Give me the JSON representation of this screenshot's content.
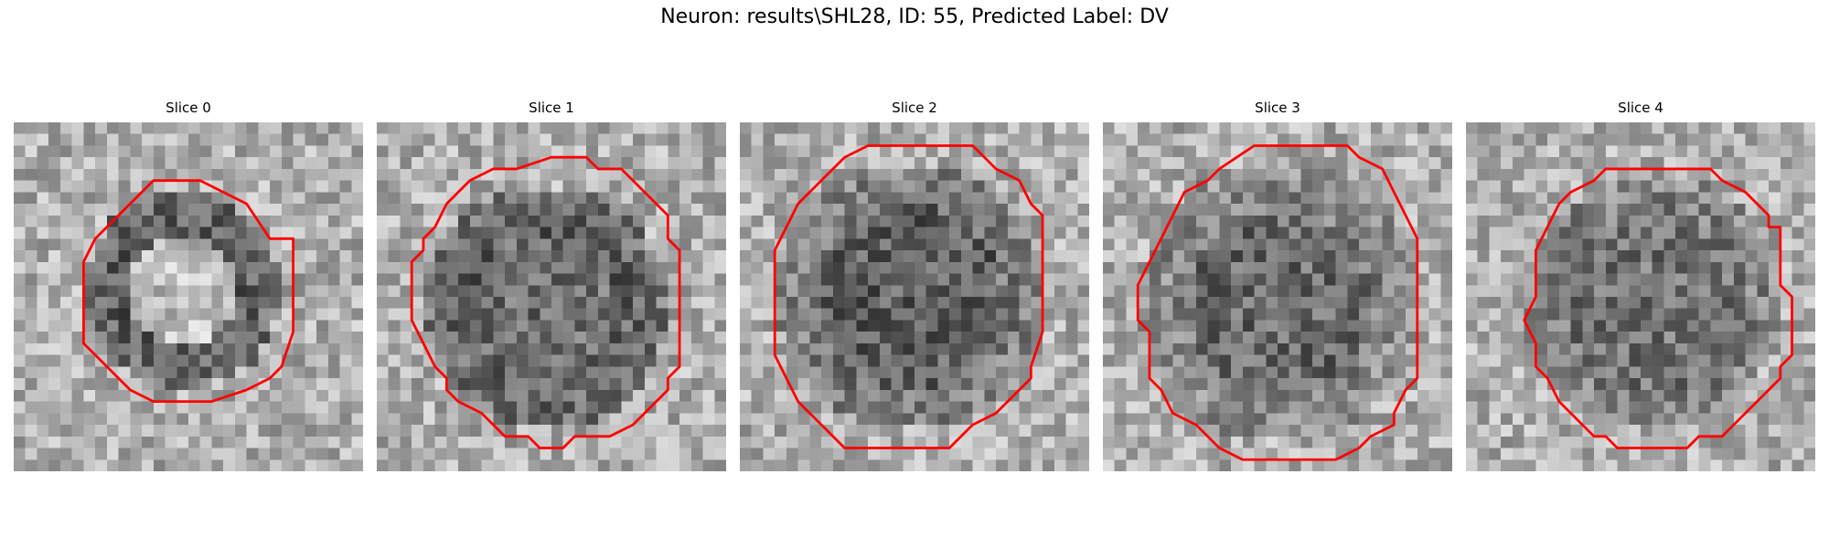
{
  "figure": {
    "title": "Neuron: results\\SHL28, ID: 55, Predicted Label: DV"
  },
  "colors": {
    "contour": "#ff0000",
    "background": "#ffffff",
    "colormap": "grayscale"
  },
  "slices": [
    {
      "title": "Slice 0"
    },
    {
      "title": "Slice 1"
    },
    {
      "title": "Slice 2"
    },
    {
      "title": "Slice 3"
    },
    {
      "title": "Slice 4"
    }
  ]
}
